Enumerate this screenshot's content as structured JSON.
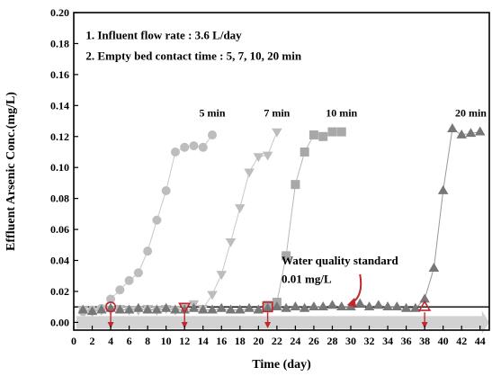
{
  "chart_data": {
    "type": "scatter",
    "xlabel": "Time (day)",
    "ylabel": "Effluent Arsenic Conc.(mg/L)",
    "xlim": [
      0,
      45
    ],
    "ylim": [
      -0.005,
      0.2
    ],
    "xticks": [
      0,
      2,
      4,
      6,
      8,
      10,
      12,
      14,
      16,
      18,
      20,
      22,
      24,
      26,
      28,
      30,
      32,
      34,
      36,
      38,
      40,
      42,
      44
    ],
    "yticks": [
      0.0,
      0.02,
      0.04,
      0.06,
      0.08,
      0.1,
      0.12,
      0.14,
      0.16,
      0.18,
      0.2
    ],
    "ytick_labels": [
      "0.00",
      "0.02",
      "0.04",
      "0.06",
      "0.08",
      "0.10",
      "0.12",
      "0.14",
      "0.16",
      "0.18",
      "0.20"
    ],
    "notes": [
      "1. Influent flow rate : 3.6 L/day",
      "2. Empty bed contact time : 5, 7, 10, 20 min"
    ],
    "standard": {
      "value": 0.01,
      "label_line1": "Water quality standard",
      "label_line2": "0.01 mg/L"
    },
    "series": [
      {
        "name": "5 min",
        "marker": "circle",
        "color": "#bdbdbd",
        "line_color": "#c8c8c8",
        "label_at": [
          15,
          0.133
        ],
        "x": [
          1,
          2,
          3,
          4,
          5,
          6,
          7,
          8,
          9,
          10,
          11,
          12,
          13,
          14,
          15
        ],
        "y": [
          0.007,
          0.008,
          0.009,
          0.015,
          0.021,
          0.027,
          0.032,
          0.046,
          0.066,
          0.085,
          0.11,
          0.113,
          0.114,
          0.113,
          0.121
        ]
      },
      {
        "name": "7 min",
        "marker": "triangle-down",
        "color": "#bdbdbd",
        "line_color": "#c8c8c8",
        "label_at": [
          22,
          0.133
        ],
        "x": [
          1,
          2,
          3,
          4,
          5,
          6,
          7,
          8,
          9,
          10,
          11,
          12,
          13,
          14,
          15,
          16,
          17,
          18,
          19,
          20,
          21,
          22
        ],
        "y": [
          0.008,
          0.007,
          0.008,
          0.008,
          0.009,
          0.008,
          0.008,
          0.009,
          0.008,
          0.009,
          0.008,
          0.01,
          0.012,
          0.009,
          0.018,
          0.031,
          0.052,
          0.074,
          0.097,
          0.107,
          0.108,
          0.123
        ]
      },
      {
        "name": "10 min",
        "marker": "square",
        "color": "#a8a8a8",
        "line_color": "#b8b8b8",
        "label_at": [
          29,
          0.133
        ],
        "x": [
          21,
          22,
          23,
          24,
          25,
          26,
          27,
          28,
          29
        ],
        "y": [
          0.011,
          0.013,
          0.043,
          0.089,
          0.11,
          0.121,
          0.12,
          0.123,
          0.123
        ]
      },
      {
        "name": "20 min",
        "marker": "triangle-up",
        "color": "#777777",
        "line_color": "#999999",
        "label_at": [
          43,
          0.133
        ],
        "x": [
          1,
          2,
          3,
          4,
          5,
          6,
          7,
          8,
          9,
          10,
          11,
          12,
          13,
          14,
          15,
          16,
          17,
          18,
          19,
          20,
          21,
          22,
          23,
          24,
          25,
          26,
          27,
          28,
          29,
          30,
          31,
          32,
          33,
          34,
          35,
          36,
          37,
          38,
          39,
          40,
          41,
          42,
          43,
          44
        ],
        "y": [
          0.008,
          0.007,
          0.008,
          0.009,
          0.008,
          0.008,
          0.009,
          0.008,
          0.008,
          0.009,
          0.008,
          0.008,
          0.009,
          0.008,
          0.008,
          0.009,
          0.008,
          0.008,
          0.009,
          0.008,
          0.009,
          0.01,
          0.009,
          0.01,
          0.009,
          0.01,
          0.01,
          0.011,
          0.01,
          0.01,
          0.012,
          0.01,
          0.011,
          0.01,
          0.01,
          0.009,
          0.009,
          0.015,
          0.035,
          0.085,
          0.125,
          0.121,
          0.122,
          0.123
        ]
      }
    ],
    "breakthrough_days": [
      4,
      12,
      21,
      38
    ],
    "breakthrough_markers": [
      "circle",
      "triangle-down",
      "square",
      "triangle-up"
    ]
  }
}
